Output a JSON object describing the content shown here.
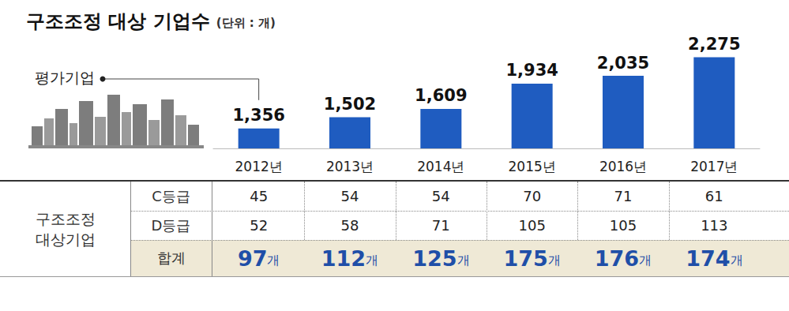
{
  "chart_data": {
    "type": "bar",
    "title": "구조조정 대상 기업수",
    "subtitle": "(단위 : 개)",
    "categories": [
      "2012년",
      "2013년",
      "2014년",
      "2015년",
      "2016년",
      "2017년"
    ],
    "values": [
      1356,
      1502,
      1609,
      1934,
      2035,
      2275
    ],
    "value_labels": [
      "1,356",
      "1,502",
      "1,609",
      "1,934",
      "2,035",
      "2,275"
    ],
    "color": "#1f5cc0",
    "ylim": [
      1100,
      2300
    ],
    "data_labels": true,
    "tick_labels": "x",
    "grid": false,
    "annotations": [
      "평가기업"
    ]
  },
  "table": {
    "group_label": "구조조정 대상기업",
    "rows": [
      {
        "label": "C등급",
        "cells": [
          45,
          54,
          54,
          70,
          71,
          61
        ]
      },
      {
        "label": "D등급",
        "cells": [
          52,
          58,
          71,
          105,
          105,
          113
        ]
      },
      {
        "label": "합계",
        "cells": [
          "97개",
          "112개",
          "125개",
          "175개",
          "176개",
          "174개"
        ]
      }
    ]
  }
}
